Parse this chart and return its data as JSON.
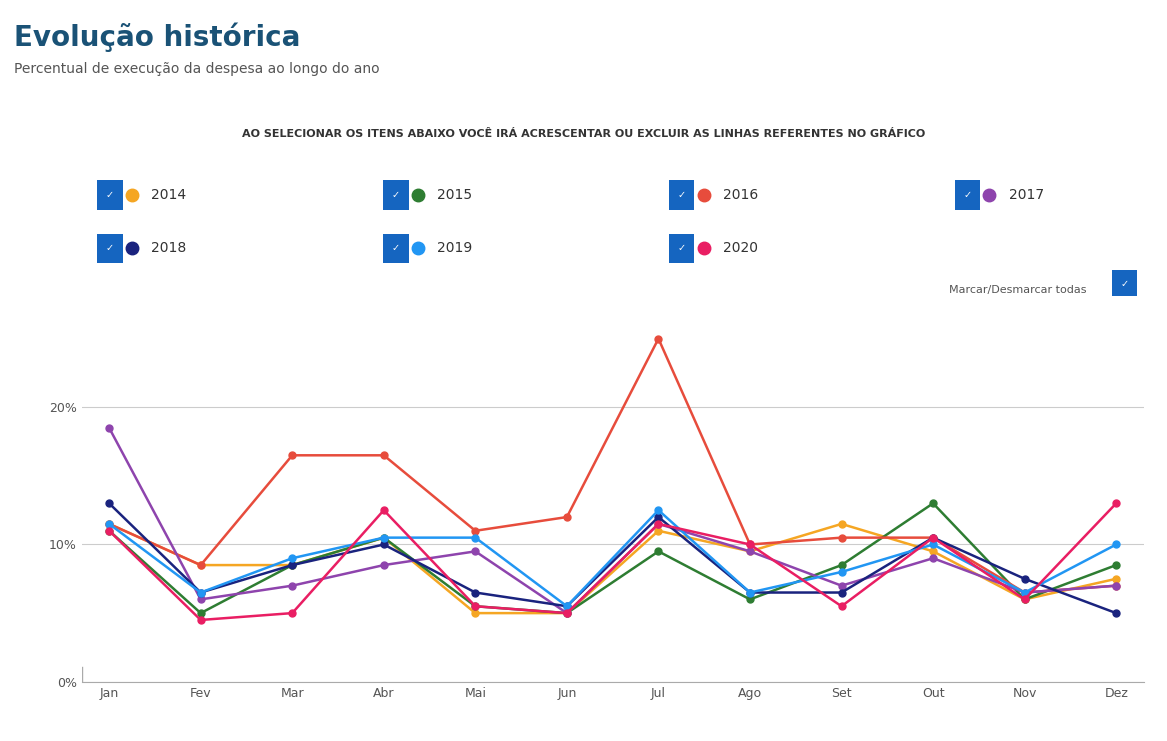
{
  "title": "Evolução histórica",
  "subtitle": "Percentual de execução da despesa ao longo do ano",
  "banner_text": "AO SELECIONAR OS ITENS ABAIXO VOCÊ IRÁ ACRESCENTAR OU EXCLUIR AS LINHAS REFERENTES NO GRÁFICO",
  "months": [
    "Jan",
    "Fev",
    "Mar",
    "Abr",
    "Mai",
    "Jun",
    "Jul",
    "Ago",
    "Set",
    "Out",
    "Nov",
    "Dez"
  ],
  "series": [
    {
      "year": "2014",
      "color": "#f5a623",
      "values": [
        11.5,
        8.5,
        8.5,
        10.5,
        5.0,
        5.0,
        11.0,
        9.5,
        11.5,
        9.5,
        6.0,
        7.5
      ]
    },
    {
      "year": "2015",
      "color": "#2e7d32",
      "values": [
        11.0,
        5.0,
        8.5,
        10.5,
        5.5,
        5.0,
        9.5,
        6.0,
        8.5,
        13.0,
        6.0,
        8.5
      ]
    },
    {
      "year": "2016",
      "color": "#e74c3c",
      "values": [
        11.5,
        8.5,
        16.5,
        16.5,
        11.0,
        12.0,
        25.0,
        10.0,
        10.5,
        10.5,
        6.5,
        7.0
      ]
    },
    {
      "year": "2017",
      "color": "#8e44ad",
      "values": [
        18.5,
        6.0,
        7.0,
        8.5,
        9.5,
        5.0,
        11.5,
        9.5,
        7.0,
        9.0,
        6.5,
        7.0
      ]
    },
    {
      "year": "2018",
      "color": "#1a237e",
      "values": [
        13.0,
        6.5,
        8.5,
        10.0,
        6.5,
        5.5,
        12.0,
        6.5,
        6.5,
        10.5,
        7.5,
        5.0
      ]
    },
    {
      "year": "2019",
      "color": "#2196f3",
      "values": [
        11.5,
        6.5,
        9.0,
        10.5,
        10.5,
        5.5,
        12.5,
        6.5,
        8.0,
        10.0,
        6.5,
        10.0
      ]
    },
    {
      "year": "2020",
      "color": "#e91e63",
      "values": [
        11.0,
        4.5,
        5.0,
        12.5,
        5.5,
        5.0,
        11.5,
        10.0,
        5.5,
        10.5,
        6.0,
        13.0
      ]
    }
  ],
  "ylim": [
    0,
    27
  ],
  "yticks": [
    0,
    10,
    20
  ],
  "ytick_labels": [
    "0%",
    "10%",
    "20%"
  ],
  "background_color": "#ffffff",
  "plot_bg_color": "#ffffff",
  "legend_bg_color": "#eef2f7",
  "banner_bg_color": "#dce6f1"
}
